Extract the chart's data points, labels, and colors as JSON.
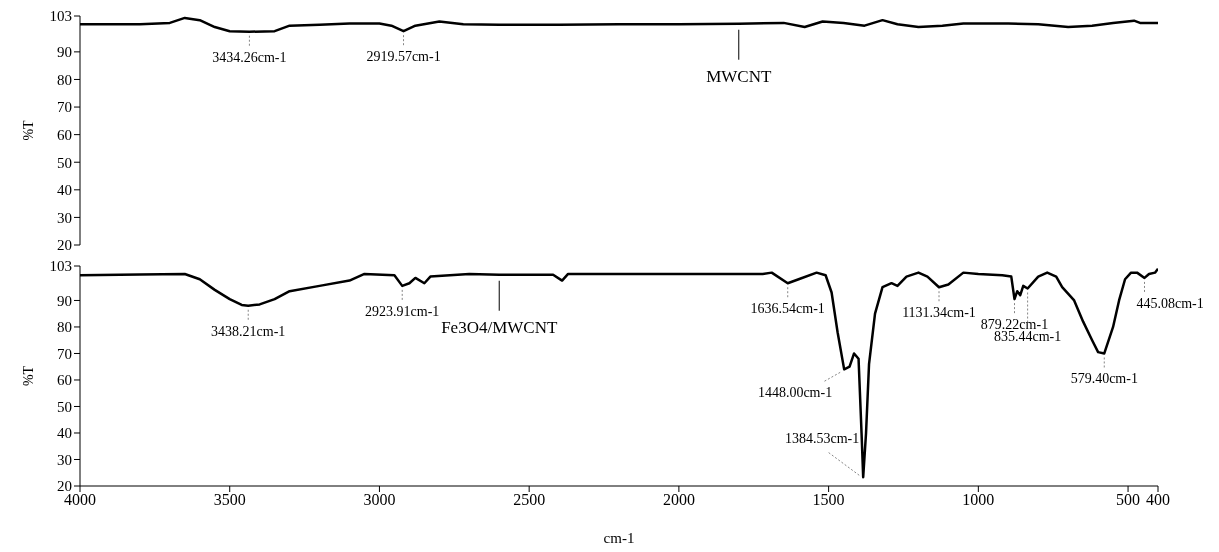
{
  "chart_data": [
    {
      "type": "line",
      "ylabel": "%T",
      "xlim": [
        4000,
        400
      ],
      "ylim": [
        20,
        103
      ],
      "yticks": [
        20,
        30,
        40,
        50,
        60,
        70,
        80,
        90,
        103
      ],
      "tick_labels": "y",
      "marker": "none",
      "line_style": "solid",
      "series": [
        {
          "name": "MWCNT",
          "color": "#000000",
          "x": [
            4000,
            3800,
            3700,
            3650,
            3600,
            3550,
            3500,
            3434.26,
            3350,
            3300,
            3200,
            3100,
            3000,
            2960,
            2919.57,
            2880,
            2800,
            2720,
            2600,
            2400,
            2200,
            2000,
            1800,
            1650,
            1580,
            1520,
            1450,
            1380,
            1320,
            1270,
            1200,
            1120,
            1050,
            900,
            800,
            700,
            620,
            550,
            480,
            460,
            420,
            400
          ],
          "values": [
            100,
            100,
            100.5,
            102.3,
            101.5,
            99,
            97.5,
            97.3,
            97.5,
            99.5,
            99.8,
            100.3,
            100.3,
            99.5,
            97.5,
            99.5,
            101,
            100,
            99.8,
            99.8,
            100,
            100,
            100.2,
            100.5,
            99,
            101,
            100.5,
            99.5,
            101.5,
            100,
            99,
            99.5,
            100.3,
            100.3,
            100,
            99,
            99.5,
            100.5,
            101.3,
            100.5,
            100.5,
            100.5
          ]
        }
      ],
      "annotations": [
        {
          "text": "3434.26cm-1",
          "x": 3434.26,
          "y": 97.3
        },
        {
          "text": "2919.57cm-1",
          "x": 2919.57,
          "y": 97.5
        }
      ]
    },
    {
      "type": "line",
      "xlabel": "cm-1",
      "ylabel": "%T",
      "xlim": [
        4000,
        400
      ],
      "xticks": [
        4000,
        3500,
        3000,
        2500,
        2000,
        1500,
        1000,
        500,
        400
      ],
      "ylim": [
        20,
        103
      ],
      "yticks": [
        20,
        30,
        40,
        50,
        60,
        70,
        80,
        90,
        103
      ],
      "marker": "none",
      "line_style": "solid",
      "series": [
        {
          "name": "Fe3O4/MWCNT",
          "color": "#000000",
          "x": [
            4000,
            3800,
            3650,
            3600,
            3550,
            3500,
            3460,
            3438.21,
            3400,
            3350,
            3300,
            3200,
            3100,
            3050,
            2950,
            2923.91,
            2900,
            2880,
            2850,
            2830,
            2700,
            2600,
            2420,
            2390,
            2370,
            2000,
            1720,
            1690,
            1636.54,
            1600,
            1540,
            1510,
            1490,
            1470,
            1448,
            1430,
            1415,
            1400,
            1390,
            1384.53,
            1375,
            1365,
            1345,
            1320,
            1290,
            1270,
            1240,
            1200,
            1170,
            1131.34,
            1100,
            1050,
            1000,
            920,
            890,
            879.22,
            870,
            860,
            850,
            835.44,
            800,
            770,
            740,
            720,
            680,
            650,
            620,
            600,
            579.4,
            550,
            530,
            510,
            490,
            470,
            445.08,
            430,
            410,
            400
          ],
          "values": [
            99.5,
            99.8,
            100,
            98,
            94,
            90.5,
            88.3,
            88,
            88.5,
            90.5,
            93.5,
            95.5,
            97.5,
            100,
            99.5,
            95.5,
            96.5,
            98.5,
            96.5,
            99,
            100,
            99.7,
            99.7,
            97.5,
            100,
            100,
            100,
            100.5,
            96.5,
            98,
            100.5,
            99.5,
            93,
            78,
            64,
            65,
            70,
            68,
            40,
            23.3,
            40,
            66,
            85,
            95,
            96.5,
            95.5,
            99,
            100.5,
            99,
            95,
            96,
            100.5,
            100,
            99.5,
            99,
            90.5,
            93.5,
            92,
            95.5,
            94.5,
            99,
            100.5,
            99,
            95,
            90,
            82,
            75,
            70.5,
            70,
            80,
            90,
            98,
            100.5,
            100.5,
            98.5,
            100,
            100.5,
            102
          ]
        }
      ],
      "annotations": [
        {
          "text": "3438.21cm-1",
          "x": 3438.21,
          "y": 88
        },
        {
          "text": "2923.91cm-1",
          "x": 2923.91,
          "y": 95.5
        },
        {
          "text": "1636.54cm-1",
          "x": 1636.54,
          "y": 96.5
        },
        {
          "text": "1448.00cm-1",
          "x": 1448,
          "y": 64
        },
        {
          "text": "1384.53cm-1",
          "x": 1384.53,
          "y": 23.3
        },
        {
          "text": "1131.34cm-1",
          "x": 1131.34,
          "y": 95
        },
        {
          "text": "879.22cm-1",
          "x": 879.22,
          "y": 90.5
        },
        {
          "text": "835.44cm-1",
          "x": 835.44,
          "y": 94.5
        },
        {
          "text": "579.40cm-1",
          "x": 579.4,
          "y": 70
        },
        {
          "text": "445.08cm-1",
          "x": 445.08,
          "y": 98.5
        }
      ]
    }
  ]
}
